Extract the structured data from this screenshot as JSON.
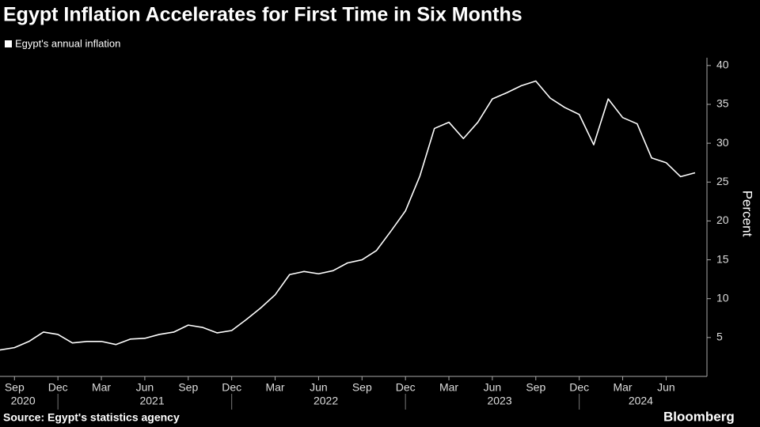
{
  "chart_data": {
    "type": "line",
    "title": "Egypt Inflation Accelerates for First Time in Six Months",
    "source": "Source: Egypt's statistics agency",
    "brand": "Bloomberg",
    "ylabel": "Percent",
    "categories": [
      null,
      "Sep",
      null,
      null,
      "Dec",
      null,
      null,
      "Mar",
      null,
      null,
      "Jun",
      null,
      null,
      "Sep",
      null,
      null,
      "Dec",
      null,
      null,
      "Mar",
      null,
      null,
      "Jun",
      null,
      null,
      "Sep",
      null,
      null,
      "Dec",
      null,
      null,
      "Mar",
      null,
      null,
      "Jun",
      null,
      null,
      "Sep",
      null,
      null,
      "Dec",
      null,
      null,
      "Mar",
      null,
      null,
      "Jun",
      null,
      null
    ],
    "years": [
      "2020",
      "2021",
      "2022",
      "2023",
      "2024"
    ],
    "series": [
      {
        "name": "Egypt's annual inflation",
        "color": "#ffffff",
        "values": [
          3.4,
          3.7,
          4.5,
          5.7,
          5.4,
          4.3,
          4.5,
          4.5,
          4.1,
          4.8,
          4.9,
          5.4,
          5.7,
          6.6,
          6.3,
          5.6,
          5.9,
          7.3,
          8.8,
          10.5,
          13.1,
          13.5,
          13.2,
          13.6,
          14.6,
          15.0,
          16.2,
          18.7,
          21.3,
          25.8,
          31.9,
          32.7,
          30.6,
          32.7,
          35.7,
          36.5,
          37.4,
          38.0,
          35.8,
          34.6,
          33.7,
          29.8,
          35.7,
          33.3,
          32.5,
          28.1,
          27.5,
          25.7,
          26.2
        ]
      }
    ],
    "ylim": [
      0,
      41
    ],
    "yticks": [
      5,
      10,
      15,
      20,
      25,
      30,
      35,
      40
    ],
    "axis_side": "right"
  }
}
